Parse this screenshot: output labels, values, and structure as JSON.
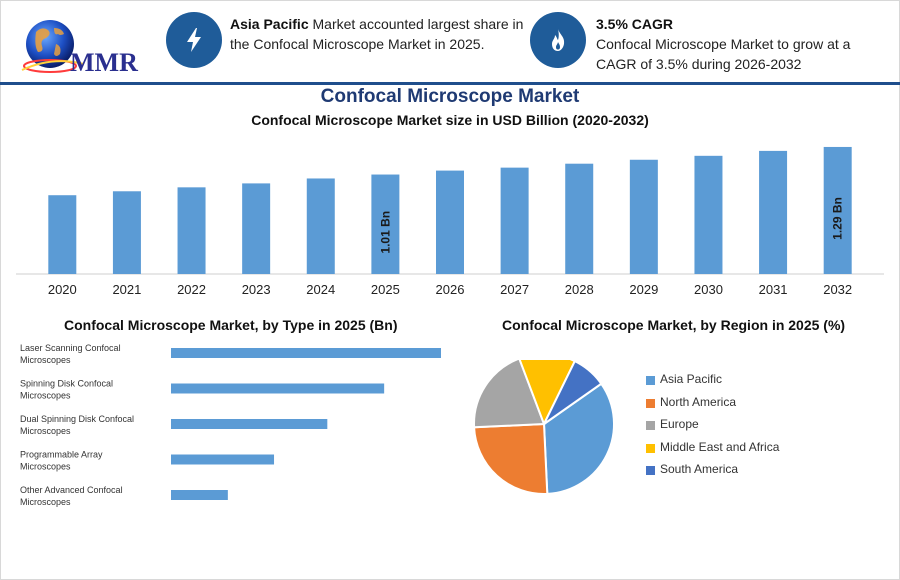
{
  "header": {
    "logo_text": "MMR",
    "info1": {
      "highlight": "Asia Pacific",
      "text": " Market accounted largest share in the Confocal Microscope Market in 2025.",
      "icon": "bolt-icon"
    },
    "info2": {
      "title": "3.5% CAGR",
      "text": "Confocal Microscope Market to grow at a CAGR of 3.5% during 2026-2032",
      "icon": "flame-icon"
    }
  },
  "title": "Confocal Microscope Market",
  "subtitle": "Confocal Microscope Market size in USD Billion (2020-2032)",
  "colors": {
    "bar": "#5b9bd5",
    "navy": "#1f5c99",
    "title": "#1f3a73"
  },
  "chart_data": [
    {
      "type": "bar",
      "title": "Confocal Microscope Market size in USD Billion (2020-2032)",
      "categories": [
        "2020",
        "2021",
        "2022",
        "2023",
        "2024",
        "2025",
        "2026",
        "2027",
        "2028",
        "2029",
        "2030",
        "2031",
        "2032"
      ],
      "values": [
        0.8,
        0.84,
        0.88,
        0.92,
        0.97,
        1.01,
        1.05,
        1.08,
        1.12,
        1.16,
        1.2,
        1.25,
        1.29
      ],
      "data_labels": {
        "5": "1.01 Bn",
        "12": "1.29 Bn"
      },
      "ylim": [
        0,
        1.32
      ],
      "xlabel": "",
      "ylabel": ""
    },
    {
      "type": "bar",
      "orientation": "horizontal",
      "title": "Confocal Microscope Market, by Type in 2025 (Bn)",
      "categories": [
        [
          "Laser Scanning Confocal",
          "Microscopes"
        ],
        [
          "Spinning Disk Confocal",
          "Microscopes"
        ],
        [
          "Dual Spinning Disk Confocal",
          "Microscopes"
        ],
        [
          "Programmable Array",
          "Microscopes"
        ],
        [
          "Other Advanced Confocal",
          "Microscopes"
        ]
      ],
      "values": [
        0.38,
        0.3,
        0.22,
        0.145,
        0.08
      ],
      "xlim": [
        0,
        0.38
      ]
    },
    {
      "type": "pie",
      "title": "Confocal Microscope Market, by Region in 2025 (%)",
      "labels": [
        "Asia Pacific",
        "North America",
        "Europe",
        "Middle East and Africa",
        "South America"
      ],
      "values": [
        34,
        25,
        20,
        13,
        8
      ],
      "colors": [
        "#5b9bd5",
        "#ed7d31",
        "#a5a5a5",
        "#ffc000",
        "#4472c4"
      ]
    }
  ]
}
